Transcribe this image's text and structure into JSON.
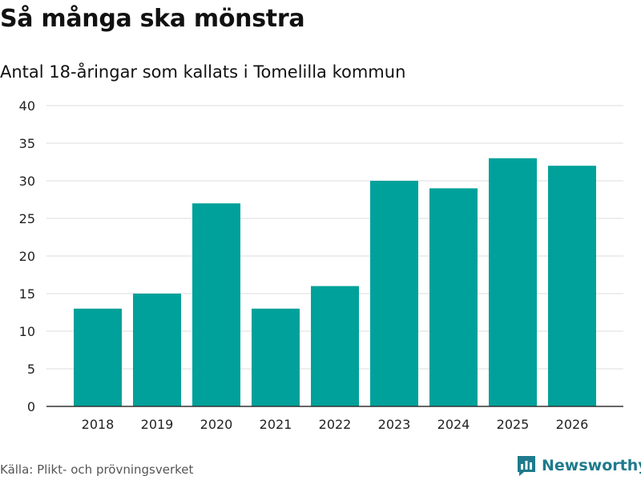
{
  "title": "Så många ska mönstra",
  "subtitle": "Antal 18-åringar som kallats i Tomelilla kommun",
  "source": "Källa: Plikt- och prövningsverket",
  "brand": {
    "name": "Newsworthy",
    "icon": "newsworthy-logo-icon",
    "color": "#1f7a8c"
  },
  "colors": {
    "bar": "#00a19a",
    "grid": "#dddddd",
    "axis": "#333333"
  },
  "chart_data": {
    "type": "bar",
    "title": "Så många ska mönstra",
    "subtitle": "Antal 18-åringar som kallats i Tomelilla kommun",
    "xlabel": "",
    "ylabel": "",
    "categories": [
      "2018",
      "2019",
      "2020",
      "2021",
      "2022",
      "2023",
      "2024",
      "2025",
      "2026"
    ],
    "values": [
      13,
      15,
      27,
      13,
      16,
      30,
      29,
      33,
      32
    ],
    "ylim": [
      0,
      40
    ],
    "yticks": [
      0,
      5,
      10,
      15,
      20,
      25,
      30,
      35,
      40
    ],
    "grid": true,
    "legend": "none"
  }
}
